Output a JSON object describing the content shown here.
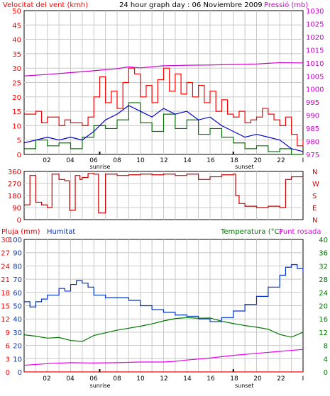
{
  "title": "24 hour graph day : 06 Noviembre 2009",
  "colors": {
    "wind_avg": "#0000cc",
    "wind_gust": "#ff0000",
    "wind_dir": "#cc0000",
    "green": "#007700",
    "pressure": "#cc00cc",
    "rain": "#ff0000",
    "humidity": "#0033cc",
    "temperature": "#007700",
    "dewpoint": "#ee00ee",
    "grid": "#c8c8c8",
    "sun_marker": "#000000",
    "frame": "#000000"
  },
  "x_axis": {
    "tick_labels": [
      "02",
      "04",
      "06",
      "08",
      "10",
      "12",
      "14",
      "16",
      "18",
      "20",
      "22"
    ],
    "end_label": "I",
    "sunrise_label": "sunrise",
    "sunset_label": "sunset",
    "range": [
      0,
      24
    ]
  },
  "chart_data": [
    {
      "type": "line",
      "title": "",
      "left_label": "Velocitat del vent (kmh)",
      "right_label": "Pressió (mb)",
      "left_ticks": [
        "0",
        "5",
        "10",
        "15",
        "20",
        "25",
        "30",
        "35",
        "40",
        "45",
        "50"
      ],
      "right_ticks": [
        "975",
        "980",
        "985",
        "990",
        "995",
        "1000",
        "1005",
        "1010",
        "1015",
        "1020",
        "1025",
        "1030"
      ],
      "ylim_left": [
        0,
        50
      ],
      "ylim_right": [
        975,
        1030
      ],
      "grid": true,
      "sunrise_hour": 6.5,
      "sunset_hour": 18.0,
      "series": [
        {
          "key": "pressure",
          "axis": "right",
          "x": [
            0,
            2,
            4,
            6,
            8,
            9,
            10,
            12,
            14,
            16,
            18,
            20,
            22,
            24
          ],
          "y": [
            1005,
            1005.6,
            1006.3,
            1007,
            1007.8,
            1008.5,
            1008.1,
            1008.9,
            1009.1,
            1009.2,
            1009.4,
            1009.6,
            1010.1,
            1010
          ]
        },
        {
          "key": "wind_gust",
          "axis": "left",
          "x": [
            0,
            1,
            1.5,
            2,
            3,
            3.5,
            4,
            5,
            5.5,
            6,
            6.5,
            7,
            7.5,
            8,
            8.5,
            9,
            9.5,
            10,
            10.5,
            11,
            11.5,
            12,
            12.5,
            13,
            13.5,
            14,
            14.5,
            15,
            15.5,
            16,
            16.5,
            17,
            17.5,
            18,
            18.5,
            19,
            19.5,
            20,
            20.5,
            21,
            21.5,
            22,
            22.5,
            23,
            23.5,
            24
          ],
          "y": [
            14,
            15,
            11,
            13,
            10,
            12,
            11,
            10,
            13,
            20,
            27,
            18,
            22,
            16,
            25,
            30,
            28,
            20,
            24,
            18,
            26,
            30,
            22,
            28,
            21,
            25,
            20,
            24,
            18,
            22,
            15,
            19,
            14,
            13,
            15,
            11,
            12,
            13,
            16,
            14,
            12,
            10,
            13,
            7,
            3,
            5
          ]
        },
        {
          "key": "wind_avg",
          "axis": "left",
          "x": [
            0,
            1,
            2,
            3,
            4,
            5,
            6,
            7,
            8,
            9,
            10,
            11,
            12,
            13,
            14,
            15,
            16,
            17,
            18,
            19,
            20,
            21,
            22,
            23,
            24
          ],
          "y": [
            4,
            5,
            6,
            5,
            6,
            5,
            8,
            12,
            14,
            17,
            15,
            13,
            16,
            14,
            15,
            12,
            13,
            10,
            8,
            6,
            7,
            6,
            5,
            2,
            1
          ]
        },
        {
          "key": "green",
          "axis": "left",
          "x": [
            0,
            1,
            2,
            3,
            4,
            5,
            6,
            7,
            8,
            9,
            10,
            11,
            12,
            13,
            14,
            15,
            16,
            17,
            18,
            19,
            20,
            21,
            22,
            23,
            24
          ],
          "y": [
            2,
            5,
            3,
            4,
            2,
            6,
            10,
            9,
            12,
            18,
            11,
            8,
            14,
            9,
            12,
            7,
            9,
            6,
            4,
            2,
            3,
            1,
            2,
            0,
            0
          ]
        }
      ]
    },
    {
      "type": "line",
      "title": "",
      "left_ticks": [
        "0",
        "90",
        "180",
        "270",
        "360"
      ],
      "right_ticks": [
        "N",
        "E",
        "S",
        "W",
        "N"
      ],
      "ylim": [
        0,
        360
      ],
      "grid": true,
      "series": [
        {
          "key": "wind_dir",
          "x": [
            0,
            0.5,
            1,
            1.5,
            2,
            2.4,
            3,
            3.5,
            3.9,
            4,
            4.4,
            4.8,
            5,
            5.5,
            6,
            6.4,
            7,
            8,
            9,
            10,
            11,
            12,
            13,
            14,
            15,
            16,
            17,
            18,
            18.2,
            18.5,
            19,
            20,
            21,
            22,
            22.5,
            23,
            24
          ],
          "y": [
            110,
            330,
            130,
            110,
            90,
            340,
            300,
            290,
            70,
            70,
            330,
            300,
            315,
            345,
            340,
            50,
            340,
            330,
            335,
            340,
            335,
            340,
            330,
            340,
            300,
            320,
            335,
            340,
            180,
            120,
            100,
            90,
            100,
            90,
            300,
            320,
            310
          ]
        }
      ]
    },
    {
      "type": "line",
      "title": "",
      "left_label_1": "Pluja (mm)",
      "left_label_2": "Humitat",
      "right_label_1": "Temperatura (°C)",
      "right_label_2": "Punt rosada",
      "rain_ticks": [
        "0",
        "3",
        "6",
        "9",
        "12",
        "15",
        "18",
        "21",
        "24",
        "27",
        "30"
      ],
      "humidity_ticks": [
        "0",
        "10",
        "20",
        "30",
        "40",
        "50",
        "60",
        "70",
        "80",
        "90",
        "100"
      ],
      "temp_ticks": [
        "0",
        "4",
        "8",
        "12",
        "16",
        "20",
        "24",
        "28",
        "32",
        "36",
        "40"
      ],
      "ylim_humidity": [
        0,
        100
      ],
      "ylim_temperature": [
        0,
        40
      ],
      "ylim_rain": [
        0,
        30
      ],
      "grid": true,
      "series": [
        {
          "key": "humidity",
          "axis": "humidity",
          "x": [
            0,
            0.5,
            1,
            1.5,
            2,
            3,
            3.5,
            4,
            4.5,
            5,
            5.5,
            6,
            7,
            8,
            9,
            10,
            11,
            12,
            13,
            14,
            15,
            16,
            17,
            18,
            19,
            20,
            21,
            22,
            22.5,
            23,
            23.5,
            24
          ],
          "y": [
            53,
            49,
            53,
            55,
            58,
            63,
            61,
            66,
            69,
            67,
            64,
            58,
            56,
            56,
            54,
            50,
            47,
            45,
            43,
            42,
            40,
            38,
            41,
            46,
            51,
            57,
            64,
            73,
            79,
            81,
            78,
            75
          ]
        },
        {
          "key": "temperature",
          "axis": "temp",
          "x": [
            0,
            1,
            2,
            3,
            4,
            5,
            6,
            7,
            8,
            9,
            10,
            11,
            12,
            13,
            14,
            15,
            16,
            17,
            18,
            19,
            20,
            21,
            22,
            23,
            24
          ],
          "y": [
            11.2,
            10.8,
            10.2,
            10.4,
            9.5,
            9.2,
            11.0,
            11.8,
            12.6,
            13.2,
            13.8,
            14.5,
            15.4,
            16.1,
            16.4,
            16.2,
            16.3,
            15.3,
            14.6,
            14.0,
            13.5,
            12.9,
            11.3,
            10.5,
            12.0
          ]
        },
        {
          "key": "dewpoint",
          "axis": "temp",
          "x": [
            0,
            2,
            4,
            6,
            8,
            10,
            12,
            13,
            14,
            16,
            18,
            20,
            22,
            24
          ],
          "y": [
            2.0,
            2.5,
            2.8,
            2.7,
            2.8,
            3.0,
            3.0,
            3.2,
            3.6,
            4.2,
            5.0,
            5.6,
            6.2,
            6.8
          ]
        },
        {
          "key": "rain",
          "axis": "rain",
          "x": [
            0,
            24
          ],
          "y": [
            0,
            0
          ]
        }
      ]
    }
  ]
}
